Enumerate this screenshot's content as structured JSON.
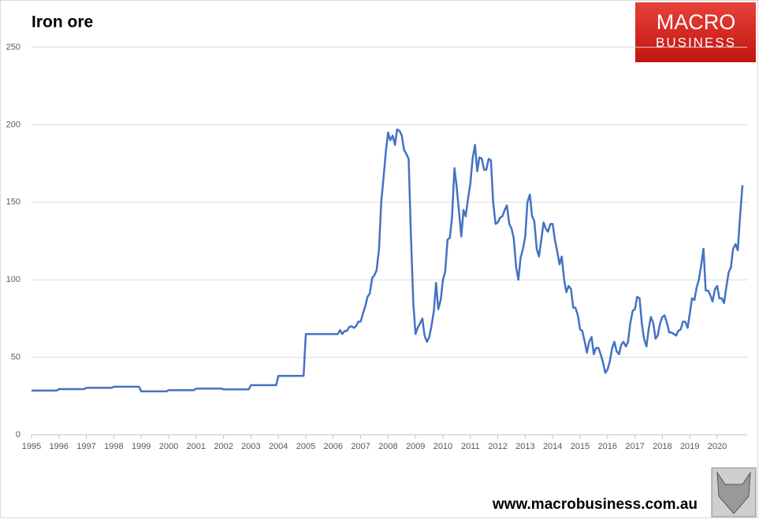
{
  "chart_data": {
    "type": "line",
    "title": "Iron ore",
    "x": [
      1995,
      1995.92,
      1996,
      1996.92,
      1997,
      1997.92,
      1998,
      1998.92,
      1999,
      1999.92,
      2000,
      2000.92,
      2001,
      2001.92,
      2002,
      2002.92,
      2003,
      2003.92,
      2004,
      2004.92,
      2005,
      2006.17,
      2006.25,
      2006.33,
      2006.42,
      2006.5,
      2006.58,
      2006.67,
      2006.75,
      2006.83,
      2006.92,
      2007,
      2007.08,
      2007.17,
      2007.25,
      2007.33,
      2007.42,
      2007.5,
      2007.58,
      2007.67,
      2007.75,
      2007.83,
      2007.92,
      2008,
      2008.08,
      2008.17,
      2008.25,
      2008.33,
      2008.42,
      2008.5,
      2008.58,
      2008.67,
      2008.75,
      2008.83,
      2008.92,
      2009,
      2009.08,
      2009.17,
      2009.25,
      2009.33,
      2009.42,
      2009.5,
      2009.58,
      2009.67,
      2009.75,
      2009.83,
      2009.92,
      2010,
      2010.08,
      2010.17,
      2010.25,
      2010.33,
      2010.42,
      2010.5,
      2010.58,
      2010.67,
      2010.75,
      2010.83,
      2010.92,
      2011,
      2011.08,
      2011.17,
      2011.25,
      2011.33,
      2011.42,
      2011.5,
      2011.58,
      2011.67,
      2011.75,
      2011.83,
      2011.92,
      2012,
      2012.08,
      2012.17,
      2012.25,
      2012.33,
      2012.42,
      2012.5,
      2012.58,
      2012.67,
      2012.75,
      2012.83,
      2012.92,
      2013,
      2013.08,
      2013.17,
      2013.25,
      2013.33,
      2013.42,
      2013.5,
      2013.58,
      2013.67,
      2013.75,
      2013.83,
      2013.92,
      2014,
      2014.08,
      2014.17,
      2014.25,
      2014.33,
      2014.42,
      2014.5,
      2014.58,
      2014.67,
      2014.75,
      2014.83,
      2014.92,
      2015,
      2015.08,
      2015.17,
      2015.25,
      2015.33,
      2015.42,
      2015.5,
      2015.58,
      2015.67,
      2015.75,
      2015.83,
      2015.92,
      2016,
      2016.08,
      2016.17,
      2016.25,
      2016.33,
      2016.42,
      2016.5,
      2016.58,
      2016.67,
      2016.75,
      2016.83,
      2016.92,
      2017,
      2017.08,
      2017.17,
      2017.25,
      2017.33,
      2017.42,
      2017.5,
      2017.58,
      2017.67,
      2017.75,
      2017.83,
      2017.92,
      2018,
      2018.08,
      2018.17,
      2018.25,
      2018.33,
      2018.42,
      2018.5,
      2018.58,
      2018.67,
      2018.75,
      2018.83,
      2018.92,
      2019,
      2019.08,
      2019.17,
      2019.25,
      2019.33,
      2019.42,
      2019.5,
      2019.58,
      2019.67,
      2019.75,
      2019.83,
      2019.92,
      2020,
      2020.08,
      2020.17,
      2020.25,
      2020.33,
      2020.42,
      2020.5,
      2020.58,
      2020.67,
      2020.75,
      2020.83,
      2020.92
    ],
    "series": [
      {
        "color": "#4472c4",
        "values": [
          28.5,
          28.5,
          29.5,
          29.5,
          30.3,
          30.3,
          31,
          31,
          28,
          28,
          28.8,
          28.8,
          29.8,
          29.8,
          29.3,
          29.3,
          32,
          32,
          38,
          38,
          65,
          65,
          67.5,
          65,
          67,
          67,
          69.5,
          70,
          69,
          70,
          73,
          73,
          78,
          83,
          89,
          91,
          101,
          103,
          106,
          120,
          150,
          165,
          183,
          195,
          190,
          193,
          187,
          197,
          196,
          193,
          184,
          181,
          178,
          130,
          85,
          65,
          69,
          72,
          75,
          64,
          60,
          63,
          70,
          80,
          98,
          81,
          87,
          100,
          105,
          126,
          127,
          140,
          172,
          160,
          145,
          128,
          145,
          141,
          153,
          162,
          178,
          187,
          170,
          179,
          178,
          171,
          171,
          178,
          177,
          150,
          136,
          137,
          140,
          141,
          145,
          148,
          136,
          133,
          127,
          108,
          100,
          114,
          120,
          128,
          150,
          155,
          141,
          138,
          120,
          115,
          125,
          137,
          133,
          131,
          136,
          136,
          126,
          118,
          110,
          115,
          100,
          92,
          96,
          94,
          82,
          82,
          77,
          68,
          67,
          60,
          53,
          60,
          63,
          52,
          56,
          56,
          52,
          47,
          40,
          42,
          47,
          56,
          60,
          54,
          52,
          58,
          60,
          57,
          60,
          72,
          80,
          81,
          89,
          88,
          72,
          62,
          57,
          68,
          76,
          72,
          62,
          64,
          72,
          76,
          77,
          72,
          66,
          66,
          65,
          64,
          67,
          68,
          73,
          73,
          69,
          78,
          88,
          87,
          95,
          100,
          110,
          120,
          93,
          93,
          90,
          86,
          94,
          96,
          88,
          88,
          85,
          95,
          105,
          108,
          120,
          123,
          119,
          140,
          161
        ]
      }
    ],
    "xlim": [
      1995,
      2021.15
    ],
    "xticks": [
      1995,
      1996,
      1997,
      1998,
      1999,
      2000,
      2001,
      2002,
      2003,
      2004,
      2005,
      2006,
      2007,
      2008,
      2009,
      2010,
      2011,
      2012,
      2013,
      2014,
      2015,
      2016,
      2017,
      2018,
      2019,
      2020
    ],
    "ylim": [
      0,
      250
    ],
    "yticks": [
      0,
      50,
      100,
      150,
      200,
      250
    ],
    "grid": true
  },
  "logo": {
    "line1": "MACRO",
    "line2": "BUSINESS"
  },
  "footer": "www.macrobusiness.com.au"
}
